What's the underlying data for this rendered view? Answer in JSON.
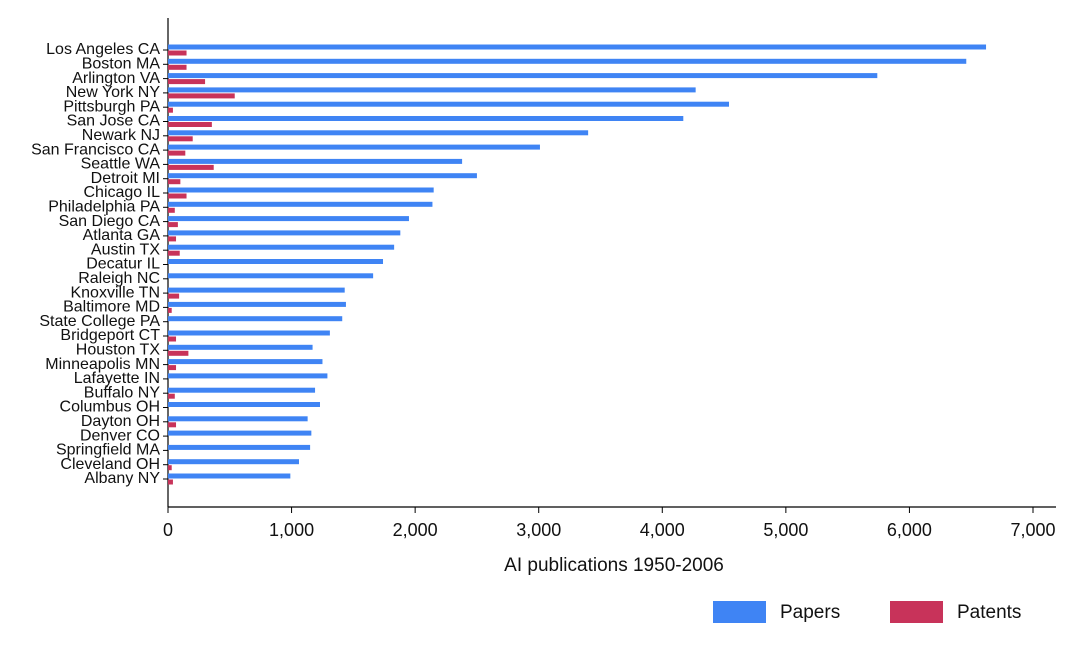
{
  "chart_data": {
    "type": "hbar",
    "xlabel": "AI publications 1950-2006",
    "categories": [
      "Los Angeles CA",
      "Boston MA",
      "Arlington  VA",
      "New York NY",
      "Pittsburgh PA",
      "San Jose CA",
      "Newark NJ",
      "San Francisco CA",
      "Seattle WA",
      "Detroit MI",
      "Chicago IL",
      "Philadelphia PA",
      "San Diego CA",
      "Atlanta GA",
      "Austin TX",
      "Decatur IL",
      "Raleigh NC",
      "Knoxville TN",
      "Baltimore MD",
      "State College PA",
      "Bridgeport CT",
      "Houston TX",
      "Minneapolis MN",
      "Lafayette IN",
      "Buffalo NY",
      "Columbus OH",
      "Dayton OH",
      "Denver CO",
      "Springfield MA",
      "Cleveland OH",
      "Albany NY"
    ],
    "series": [
      {
        "name": "Papers",
        "color": "#3f84f4",
        "values": [
          6620,
          6460,
          5740,
          4270,
          4540,
          4170,
          3400,
          3010,
          2380,
          2500,
          2150,
          2140,
          1950,
          1880,
          1830,
          1740,
          1660,
          1430,
          1440,
          1410,
          1310,
          1170,
          1250,
          1290,
          1190,
          1230,
          1130,
          1160,
          1150,
          1060,
          990
        ]
      },
      {
        "name": "Patents",
        "color": "#c8335a",
        "values": [
          150,
          150,
          300,
          540,
          40,
          355,
          200,
          140,
          370,
          100,
          150,
          55,
          80,
          65,
          95,
          0,
          0,
          90,
          30,
          0,
          65,
          165,
          65,
          0,
          55,
          0,
          65,
          0,
          0,
          30,
          40
        ]
      }
    ],
    "xlim": [
      0,
      7000
    ],
    "xticks": [
      0,
      {
        "value": 1000,
        "label": "1,000"
      },
      {
        "value": 2000,
        "label": "2,000"
      },
      {
        "value": 3000,
        "label": "3,000"
      },
      {
        "value": 4000,
        "label": "4,000"
      },
      {
        "value": 5000,
        "label": "5,000"
      },
      {
        "value": 6000,
        "label": "6,000"
      },
      {
        "value": 7000,
        "label": "7,000"
      }
    ],
    "legend": "bottom-right"
  }
}
